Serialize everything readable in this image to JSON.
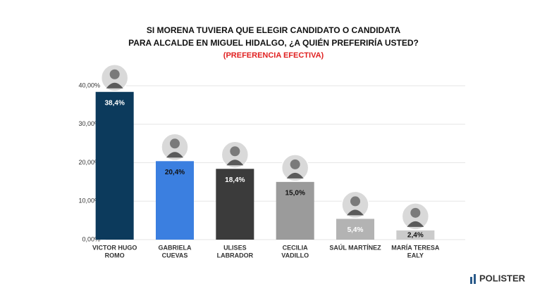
{
  "chart_data": {
    "type": "bar",
    "title": [
      "SI MORENA TUVIERA QUE ELEGIR CANDIDATO O CANDIDATA",
      "PARA ALCALDE EN MIGUEL HIDALGO, ¿A QUIÉN PREFERIRÍA USTED?"
    ],
    "subtitle": "(PREFERENCIA EFECTIVA)",
    "categories": [
      [
        "VICTOR HUGO",
        "ROMO"
      ],
      [
        "GABRIELA",
        "CUEVAS"
      ],
      [
        "ULISES",
        "LABRADOR"
      ],
      [
        "CECILIA",
        "VADILLO"
      ],
      [
        "SAÚL MARTÍNEZ"
      ],
      [
        "MARÍA TERESA",
        "EALY"
      ]
    ],
    "values": [
      38.4,
      20.4,
      18.4,
      15.0,
      5.4,
      2.4
    ],
    "value_labels": [
      "38,4%",
      "20,4%",
      "18,4%",
      "15,0%",
      "5,4%",
      "2,4%"
    ],
    "colors": [
      "#0c3a5c",
      "#3b7fe0",
      "#3b3b3b",
      "#9b9b9b",
      "#b3b3b3",
      "#cbcbcb"
    ],
    "label_colors": [
      "#ffffff",
      "#111111",
      "#ffffff",
      "#111111",
      "#ffffff",
      "#111111"
    ],
    "ylim": [
      0,
      40
    ],
    "yticks": [
      {
        "value": 0,
        "label": "0,00%"
      },
      {
        "value": 10,
        "label": "10,00%"
      },
      {
        "value": 20,
        "label": "20,00%"
      },
      {
        "value": 30,
        "label": "30,00%"
      },
      {
        "value": 40,
        "label": "40,00%"
      }
    ],
    "grid": true
  },
  "logo": "POLISTER"
}
